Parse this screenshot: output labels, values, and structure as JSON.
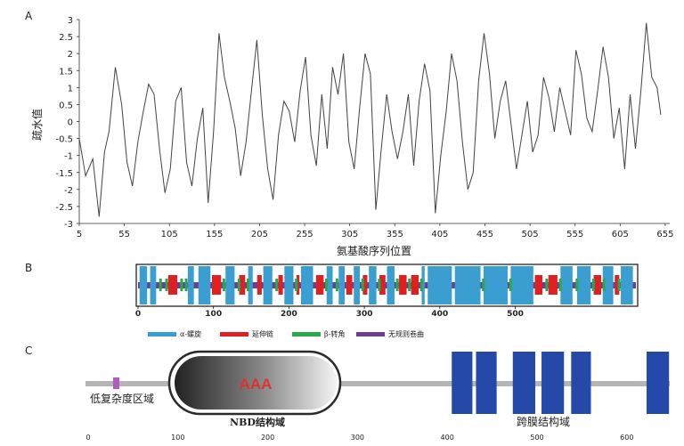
{
  "panel_a": {
    "label": "A",
    "ylabel": "疏水值",
    "xlabel": "氨基酸序列位置",
    "xticks": [
      "5",
      "55",
      "105",
      "155",
      "205",
      "255",
      "305",
      "355",
      "405",
      "455",
      "505",
      "555",
      "605",
      "655"
    ],
    "yticks": [
      "3",
      "2.5",
      "2",
      "1.5",
      "1",
      "0.5",
      "0",
      "-0.5",
      "-1",
      "-1.5",
      "-2",
      "-2.5",
      "-3"
    ]
  },
  "panel_b": {
    "label": "B",
    "ticks": [
      "0",
      "100",
      "200",
      "300",
      "400",
      "500"
    ],
    "legend": [
      {
        "label": "α-螺旋",
        "color": "#3a9fd0"
      },
      {
        "label": "延伸链",
        "color": "#e02020"
      },
      {
        "label": "β-转角",
        "color": "#2aa84a"
      },
      {
        "label": "无规则卷曲",
        "color": "#6a3d9a"
      }
    ]
  },
  "panel_c": {
    "label": "C",
    "aaa_label": "AAA",
    "low_complexity_label": "低复杂度区域",
    "nbd_label": "NBD结构域",
    "tm_label": "跨膜结构域",
    "ticks": [
      "0",
      "100",
      "200",
      "300",
      "400",
      "500",
      "600"
    ],
    "colors": {
      "tm": "#2449a8",
      "low_complexity": "#b25bbf",
      "backbone": "#b5b5b5",
      "aaa_text": "#e03030"
    }
  },
  "chart_data": {
    "type": "line",
    "xlabel": "氨基酸序列位置",
    "ylabel": "疏水值",
    "xlim": [
      5,
      660
    ],
    "ylim": [
      -3,
      3
    ],
    "x": [
      5,
      12,
      20,
      27,
      33,
      38,
      45,
      52,
      58,
      64,
      70,
      76,
      82,
      88,
      94,
      100,
      106,
      112,
      118,
      124,
      130,
      136,
      142,
      148,
      154,
      160,
      166,
      172,
      178,
      184,
      190,
      196,
      202,
      208,
      214,
      220,
      226,
      232,
      238,
      244,
      250,
      256,
      262,
      268,
      274,
      280,
      286,
      292,
      298,
      304,
      310,
      316,
      322,
      328,
      334,
      340,
      346,
      352,
      358,
      364,
      370,
      376,
      382,
      388,
      394,
      400,
      406,
      412,
      418,
      424,
      430,
      436,
      442,
      448,
      454,
      460,
      466,
      472,
      478,
      484,
      490,
      496,
      502,
      508,
      514,
      520,
      526,
      532,
      538,
      544,
      550,
      556,
      562,
      568,
      574,
      580,
      586,
      592,
      598,
      604,
      610,
      616,
      622,
      628,
      634,
      640,
      646,
      650
    ],
    "y": [
      -0.5,
      -1.6,
      -1.1,
      -2.8,
      -0.9,
      -0.3,
      1.6,
      0.5,
      -1.2,
      -1.9,
      -0.6,
      0.3,
      1.1,
      0.8,
      -0.8,
      -2.1,
      -1.4,
      0.6,
      1.0,
      -1.2,
      -1.9,
      -0.5,
      0.4,
      -2.4,
      -0.3,
      2.6,
      1.3,
      0.6,
      -0.2,
      -1.6,
      -0.6,
      0.9,
      2.4,
      0.2,
      -1.4,
      -2.3,
      -0.4,
      0.6,
      0.3,
      -0.6,
      0.9,
      1.9,
      -0.4,
      -1.3,
      0.8,
      -0.8,
      1.6,
      0.8,
      2.0,
      -0.6,
      -1.4,
      0.4,
      2.0,
      1.4,
      -2.6,
      -0.8,
      0.8,
      -0.3,
      -1.1,
      -0.3,
      0.8,
      -1.3,
      0.6,
      1.7,
      0.9,
      -2.7,
      -1.0,
      0.3,
      2.0,
      1.2,
      -0.6,
      -2.0,
      -1.5,
      1.2,
      2.6,
      1.4,
      -0.5,
      0.6,
      1.2,
      -0.1,
      -1.4,
      -0.4,
      0.6,
      -0.9,
      -0.4,
      1.3,
      0.7,
      -0.3,
      1.0,
      0.3,
      -0.4,
      2.1,
      1.4,
      0.1,
      -0.3,
      0.9,
      2.2,
      1.3,
      -0.5,
      0.4,
      -1.4,
      0.8,
      -0.8,
      0.9,
      2.9,
      1.3,
      1.0,
      0.2
    ]
  }
}
